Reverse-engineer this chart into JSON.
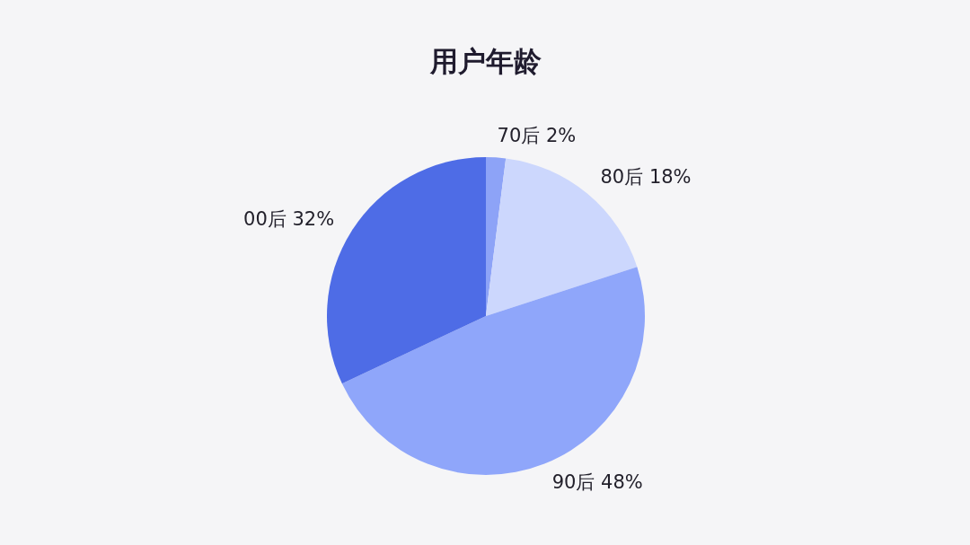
{
  "chart_data": {
    "type": "pie",
    "title": "用户年龄",
    "categories": [
      "70后",
      "80后",
      "90后",
      "00后"
    ],
    "values": [
      2,
      18,
      48,
      32
    ],
    "colors": [
      "#8da3f7",
      "#ccd7fd",
      "#8fa6fa",
      "#4e6ce6"
    ],
    "value_labels": [
      "2%",
      "18%",
      "48%",
      "32%"
    ]
  }
}
